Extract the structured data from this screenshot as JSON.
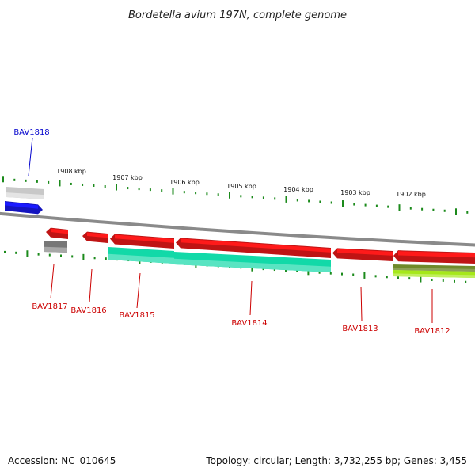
{
  "title": "Bordetella avium 197N, complete genome",
  "accession": "Accession: NC_010645",
  "topology": "Topology: circular; Length: 3,732,255 bp; Genes: 3,455",
  "colors": {
    "backbone": "#8a8a8a",
    "tick": "#1b8a1b",
    "red": "#ff1a1a",
    "teal": "#12d9a8",
    "blue": "#1a1aff",
    "gray": "#777777",
    "lightgray": "#c8c8c8",
    "olive": "#6f8a2a",
    "lime": "#a6e81a",
    "label_red": "#cc0000",
    "label_blue": "#0000cc"
  },
  "ticks": [
    {
      "label": "1908 kbp"
    },
    {
      "label": "1907 kbp"
    },
    {
      "label": "1906 kbp"
    },
    {
      "label": "1905 kbp"
    },
    {
      "label": "1904 kbp"
    },
    {
      "label": "1903 kbp"
    },
    {
      "label": "1902 kbp"
    }
  ],
  "genes": [
    {
      "name": "BAV1818",
      "strand": "+",
      "color": "blue"
    },
    {
      "name": "BAV1817",
      "strand": "-",
      "color": "red"
    },
    {
      "name": "BAV1816",
      "strand": "-",
      "color": "red"
    },
    {
      "name": "BAV1815",
      "strand": "-",
      "color": "red"
    },
    {
      "name": "BAV1814",
      "strand": "-",
      "color": "red"
    },
    {
      "name": "BAV1813",
      "strand": "-",
      "color": "red"
    },
    {
      "name": "BAV1812",
      "strand": "-",
      "color": "red"
    }
  ]
}
